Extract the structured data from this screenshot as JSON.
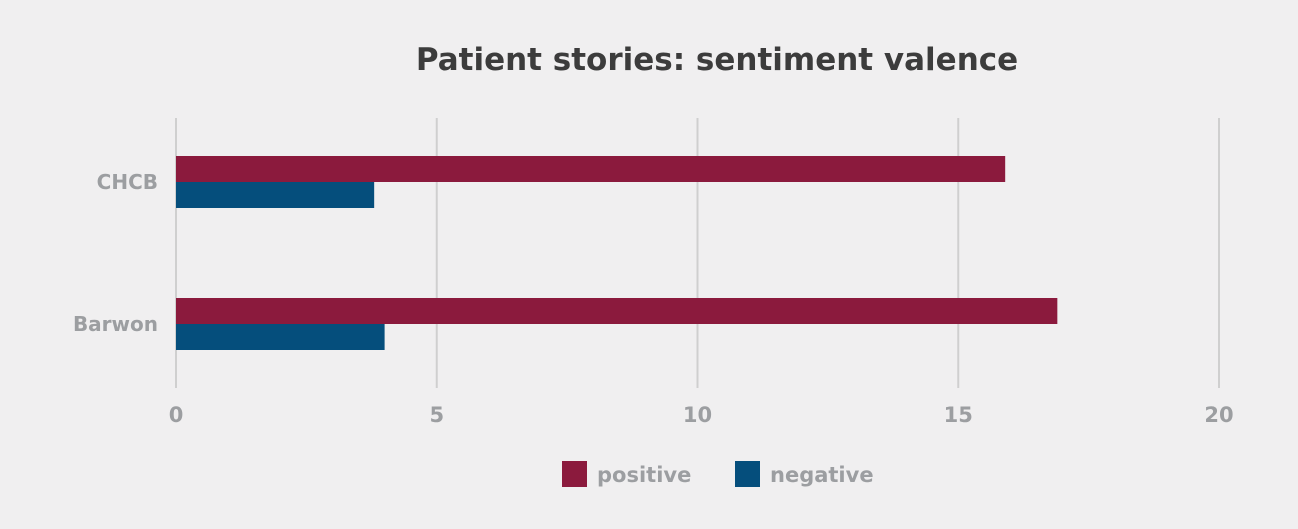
{
  "chart_data": {
    "type": "bar",
    "orientation": "horizontal",
    "title": "Patient stories: sentiment valence",
    "xlabel": "",
    "ylabel": "",
    "categories": [
      "CHCB",
      "Barwon"
    ],
    "series": [
      {
        "name": "positive",
        "color": "#8b1a3d",
        "values": [
          15.9,
          16.9
        ]
      },
      {
        "name": "negative",
        "color": "#054e7c",
        "values": [
          3.8,
          4.0
        ]
      }
    ],
    "xlim": [
      0,
      20
    ],
    "xticks": [
      "0",
      "5",
      "10",
      "15",
      "20"
    ],
    "grid": true,
    "legend_position": "bottom"
  },
  "colors": {
    "background": "#f0eff0",
    "title": "#3c3c3c",
    "labels": "#9c9ea1",
    "grid": "#cfcfcf"
  }
}
